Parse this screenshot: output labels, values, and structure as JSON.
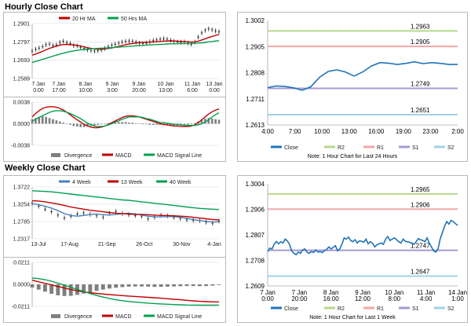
{
  "hourly": {
    "title": "Hourly Close Chart",
    "price_chart": {
      "type": "line",
      "legend": [
        "20 Hr MA",
        "50 Hrs MA"
      ],
      "yticks": [
        "1.2901",
        "1.2797",
        "1.2693",
        "1.2589"
      ],
      "ylim": [
        1.2589,
        1.2901
      ],
      "xticks": [
        "7 Jan\n0:00",
        "7 Jan\n17:00",
        "8 Jan\n10:00",
        "9 Jan\n3:00",
        "9 Jan\n20:00",
        "10 Jan\n13:00",
        "11 Jan\n6:00",
        "13 Jan\n0:00"
      ],
      "series": [
        {
          "name": "Price",
          "values": [
            1.2745,
            1.2755,
            1.2762,
            1.277,
            1.2781,
            1.2785,
            1.2776,
            1.278,
            1.2794,
            1.2801,
            1.2793,
            1.2788,
            1.2776,
            1.2774,
            1.2766,
            1.276,
            1.2752,
            1.2748,
            1.2745,
            1.2747,
            1.2752,
            1.276,
            1.277,
            1.2778,
            1.2784,
            1.279,
            1.2796,
            1.28,
            1.2802,
            1.28,
            1.2796,
            1.279,
            1.2787,
            1.279,
            1.2798,
            1.2804,
            1.2808,
            1.2812,
            1.2815,
            1.2812,
            1.2806,
            1.28,
            1.2796,
            1.2795,
            1.2797,
            1.279,
            1.2784,
            1.2796,
            1.2824,
            1.2848,
            1.2862,
            1.2871,
            1.2866,
            1.2859,
            1.2855
          ]
        },
        {
          "name": "20 Hr MA",
          "values": [
            1.2722,
            1.2728,
            1.2735,
            1.2743,
            1.2752,
            1.276,
            1.2767,
            1.2773,
            1.2779,
            1.2782,
            1.2783,
            1.2782,
            1.278,
            1.2777,
            1.2773,
            1.2769,
            1.2764,
            1.276,
            1.2757,
            1.2756,
            1.2756,
            1.2757,
            1.276,
            1.2763,
            1.2767,
            1.2771,
            1.2776,
            1.2781,
            1.2785,
            1.2788,
            1.2791,
            1.2793,
            1.2794,
            1.2795,
            1.2796,
            1.2797,
            1.2798,
            1.28,
            1.2801,
            1.2802,
            1.2803,
            1.2802,
            1.2801,
            1.28,
            1.2799,
            1.2798,
            1.2796,
            1.2797,
            1.2801,
            1.2808,
            1.2815,
            1.2822,
            1.2828,
            1.2834,
            1.2838
          ]
        },
        {
          "name": "50 Hrs MA",
          "values": [
            1.268,
            1.2686,
            1.2692,
            1.2698,
            1.2704,
            1.271,
            1.2716,
            1.2722,
            1.2728,
            1.2733,
            1.2738,
            1.2742,
            1.2746,
            1.2749,
            1.2752,
            1.2754,
            1.2756,
            1.2758,
            1.2759,
            1.276,
            1.2761,
            1.2762,
            1.2763,
            1.2764,
            1.2766,
            1.2767,
            1.2769,
            1.277,
            1.2772,
            1.2773,
            1.2775,
            1.2776,
            1.2777,
            1.2779,
            1.278,
            1.2781,
            1.2782,
            1.2783,
            1.2784,
            1.2785,
            1.2786,
            1.2786,
            1.2787,
            1.2787,
            1.2788,
            1.2788,
            1.2788,
            1.2789,
            1.279,
            1.2792,
            1.2794,
            1.2797,
            1.2799,
            1.2802,
            1.2804
          ]
        }
      ]
    },
    "macd_chart": {
      "type": "line",
      "yticks": [
        "0.0038",
        "0.0000",
        "-0.0038"
      ],
      "ylim": [
        -0.0038,
        0.0038
      ],
      "legend": [
        "Divergence",
        "MACD",
        "MACD Signal Line"
      ],
      "series": [
        {
          "name": "Divergence",
          "values": [
            0.0008,
            0.001,
            0.0012,
            0.0013,
            0.0012,
            0.001,
            0.0008,
            0.0006,
            0.0004,
            0.0002,
            0.0,
            -0.0002,
            -0.0004,
            -0.0005,
            -0.0006,
            -0.0006,
            -0.0005,
            -0.0004,
            -0.0003,
            -0.0002,
            -0.0001,
            0.0,
            0.0001,
            0.0002,
            0.0002,
            0.0003,
            0.0003,
            0.0003,
            0.0002,
            0.0002,
            0.0001,
            0.0,
            -0.0001,
            -0.0001,
            -0.0002,
            -0.0002,
            -0.0002,
            -0.0002,
            -0.0003,
            -0.0003,
            -0.0003,
            -0.0003,
            -0.0003,
            -0.0003,
            -0.0002,
            -0.0002,
            -0.0001,
            0.0001,
            0.0004,
            0.0007,
            0.0009,
            0.001,
            0.0009,
            0.0008,
            0.0007
          ]
        },
        {
          "name": "MACD",
          "values": [
            0.0012,
            0.0018,
            0.0023,
            0.0027,
            0.0029,
            0.003,
            0.003,
            0.0029,
            0.0027,
            0.0024,
            0.002,
            0.0016,
            0.0011,
            0.0007,
            0.0003,
            -0.0001,
            -0.0004,
            -0.0006,
            -0.0007,
            -0.0007,
            -0.0006,
            -0.0004,
            -0.0001,
            0.0002,
            0.0005,
            0.0008,
            0.0011,
            0.0013,
            0.0014,
            0.0014,
            0.0013,
            0.0012,
            0.001,
            0.0008,
            0.0006,
            0.0004,
            0.0002,
            0.0,
            -0.0001,
            -0.0002,
            -0.0003,
            -0.0004,
            -0.0004,
            -0.0005,
            -0.0005,
            -0.0005,
            -0.0004,
            -0.0002,
            0.0002,
            0.0007,
            0.0012,
            0.0017,
            0.0021,
            0.0024,
            0.0026
          ]
        },
        {
          "name": "MACD Signal Line",
          "values": [
            0.0004,
            0.0008,
            0.0011,
            0.0014,
            0.0017,
            0.002,
            0.0022,
            0.0023,
            0.0023,
            0.0022,
            0.002,
            0.0018,
            0.0015,
            0.0012,
            0.0009,
            0.0005,
            0.0001,
            -0.0002,
            -0.0004,
            -0.0005,
            -0.0005,
            -0.0004,
            -0.0002,
            0.0,
            0.0003,
            0.0005,
            0.0008,
            0.001,
            0.0012,
            0.0012,
            0.0012,
            0.0012,
            0.0011,
            0.0009,
            0.0008,
            0.0006,
            0.0004,
            0.0002,
            0.0002,
            0.0001,
            0.0,
            -0.0001,
            -0.0001,
            -0.0002,
            -0.0003,
            -0.0003,
            -0.0003,
            -0.0003,
            -0.0002,
            0.0,
            0.0003,
            0.0007,
            0.0012,
            0.0016,
            0.0019
          ]
        }
      ]
    },
    "levels_chart": {
      "type": "line",
      "yticks": [
        "1.3002",
        "1.2905",
        "1.2808",
        "1.2711",
        "1.2613"
      ],
      "ylim": [
        1.2613,
        1.3002
      ],
      "xticks": [
        "4:00",
        "7:00",
        "10:00",
        "13:00",
        "16:00",
        "19:00",
        "23:00",
        "2:00"
      ],
      "levels": [
        {
          "name": "R2",
          "value": 1.2963,
          "label": "1.2963"
        },
        {
          "name": "R1",
          "value": 1.2905,
          "label": "1.2905"
        },
        {
          "name": "S1",
          "value": 1.2749,
          "label": "1.2749"
        },
        {
          "name": "S2",
          "value": 1.2651,
          "label": "1.2651"
        }
      ],
      "series": [
        {
          "name": "Close",
          "values": [
            1.2752,
            1.2758,
            1.2756,
            1.2751,
            1.2742,
            1.2755,
            1.279,
            1.2812,
            1.2818,
            1.281,
            1.2795,
            1.281,
            1.2832,
            1.2845,
            1.2843,
            1.2838,
            1.2842,
            1.2848,
            1.2841,
            1.2845,
            1.2842,
            1.2838,
            1.2838
          ]
        }
      ],
      "legend": [
        "Close",
        "R2",
        "R1",
        "S1",
        "S2"
      ],
      "note": "Note: 1 Hour Chart for Last 24 Hours"
    }
  },
  "weekly": {
    "title": "Weekly Close Chart",
    "price_chart": {
      "type": "line",
      "legend": [
        "4 Week",
        "13 Week",
        "40 Week"
      ],
      "yticks": [
        "1.3722",
        "1.3254",
        "1.2785",
        "1.2317"
      ],
      "ylim": [
        1.2317,
        1.3722
      ],
      "xticks": [
        "13-Jul",
        "17-Aug",
        "21-Sep",
        "26-Oct",
        "30-Nov",
        "4-Jan"
      ],
      "series": [
        {
          "name": "Price",
          "values": [
            1.328,
            1.32,
            1.312,
            1.305,
            1.296,
            1.288,
            1.293,
            1.299,
            1.302,
            1.298,
            1.294,
            1.29,
            1.301,
            1.306,
            1.3,
            1.297,
            1.295,
            1.293,
            1.286,
            1.29,
            1.296,
            1.294,
            1.29,
            1.287,
            1.283,
            1.282,
            1.281,
            1.277,
            1.274,
            1.28
          ]
        },
        {
          "name": "4 Week",
          "values": [
            1.327,
            1.324,
            1.32,
            1.315,
            1.308,
            1.3,
            1.295,
            1.293,
            1.295,
            1.298,
            1.299,
            1.297,
            1.296,
            1.298,
            1.3,
            1.301,
            1.299,
            1.296,
            1.293,
            1.291,
            1.291,
            1.292,
            1.292,
            1.29,
            1.287,
            1.284,
            1.281,
            1.279,
            1.277,
            1.278
          ]
        },
        {
          "name": "13 Week",
          "values": [
            1.335,
            1.334,
            1.332,
            1.329,
            1.326,
            1.322,
            1.318,
            1.315,
            1.312,
            1.309,
            1.307,
            1.305,
            1.303,
            1.301,
            1.3,
            1.299,
            1.298,
            1.298,
            1.297,
            1.296,
            1.295,
            1.295,
            1.294,
            1.293,
            1.292,
            1.29,
            1.288,
            1.286,
            1.284,
            1.283
          ]
        },
        {
          "name": "40 Week",
          "values": [
            1.362,
            1.361,
            1.36,
            1.359,
            1.357,
            1.355,
            1.353,
            1.351,
            1.349,
            1.347,
            1.345,
            1.343,
            1.341,
            1.339,
            1.337,
            1.336,
            1.334,
            1.332,
            1.33,
            1.328,
            1.326,
            1.324,
            1.322,
            1.32,
            1.318,
            1.316,
            1.314,
            1.313,
            1.312,
            1.311
          ]
        }
      ]
    },
    "macd_chart": {
      "type": "line",
      "yticks": [
        "0.0211",
        "0.0000",
        "-0.0211"
      ],
      "ylim": [
        -0.0211,
        0.0211
      ],
      "legend": [
        "Divergence",
        "MACD",
        "MACD Signal Line"
      ],
      "series": [
        {
          "name": "Divergence",
          "values": [
            -0.003,
            -0.005,
            -0.007,
            -0.009,
            -0.0105,
            -0.0112,
            -0.011,
            -0.01,
            -0.0088,
            -0.0075,
            -0.0062,
            -0.005,
            -0.004,
            -0.0032,
            -0.0026,
            -0.0022,
            -0.002,
            -0.002,
            -0.0022,
            -0.0024,
            -0.0024,
            -0.0022,
            -0.002,
            -0.0018,
            -0.0016,
            -0.0016,
            -0.0017,
            -0.0016,
            -0.0012,
            -0.0006
          ]
        },
        {
          "name": "MACD",
          "values": [
            0.004,
            0.0025,
            0.001,
            -0.0005,
            -0.002,
            -0.0035,
            -0.005,
            -0.0062,
            -0.0072,
            -0.008,
            -0.0087,
            -0.0093,
            -0.0098,
            -0.0103,
            -0.0108,
            -0.0112,
            -0.0116,
            -0.012,
            -0.0124,
            -0.0128,
            -0.0133,
            -0.0138,
            -0.0143,
            -0.0148,
            -0.0153,
            -0.0158,
            -0.0163,
            -0.0166,
            -0.0168,
            -0.0168
          ]
        },
        {
          "name": "MACD Signal Line",
          "values": [
            0.006,
            0.0055,
            0.0045,
            0.003,
            0.0012,
            -0.0008,
            -0.0028,
            -0.0048,
            -0.0068,
            -0.0088,
            -0.0106,
            -0.0122,
            -0.0136,
            -0.0148,
            -0.0157,
            -0.0164,
            -0.017,
            -0.0175,
            -0.018,
            -0.0184,
            -0.0188,
            -0.0191,
            -0.0194,
            -0.0196,
            -0.0198,
            -0.0199,
            -0.02,
            -0.02,
            -0.02,
            -0.0199
          ]
        }
      ]
    },
    "levels_chart": {
      "type": "line",
      "yticks": [
        "1.3004",
        "1.2906",
        "1.2807",
        "1.2708",
        "1.2609"
      ],
      "ylim": [
        1.2609,
        1.3004
      ],
      "xticks": [
        "7 Jan\n0:00",
        "7 Jan\n20:00",
        "8 Jan\n16:00",
        "9 Jan\n12:00",
        "10 Jan\n8:00",
        "11 Jan\n4:00",
        "14 Jan\n1:00"
      ],
      "levels": [
        {
          "name": "R2",
          "value": 1.2965,
          "label": "1.2965"
        },
        {
          "name": "R1",
          "value": 1.2906,
          "label": "1.2906"
        },
        {
          "name": "S1",
          "value": 1.2747,
          "label": "1.2747"
        },
        {
          "name": "S2",
          "value": 1.2647,
          "label": "1.2647"
        }
      ],
      "series": [
        {
          "name": "Close",
          "values": [
            1.2742,
            1.2755,
            1.2752,
            1.2771,
            1.2781,
            1.2772,
            1.278,
            1.2775,
            1.279,
            1.2783,
            1.277,
            1.2745,
            1.2735,
            1.273,
            1.274,
            1.2735,
            1.2748,
            1.2752,
            1.274,
            1.2735,
            1.2742,
            1.2738,
            1.2748,
            1.274,
            1.2742,
            1.2738,
            1.2745,
            1.275,
            1.276,
            1.2752,
            1.2758,
            1.2765,
            1.2745,
            1.2752,
            1.277,
            1.2795,
            1.279,
            1.2798,
            1.2785,
            1.278,
            1.2788,
            1.2775,
            1.2783,
            1.2782,
            1.2778,
            1.279,
            1.2772,
            1.278,
            1.2775,
            1.276,
            1.2768,
            1.2772,
            1.2775,
            1.277,
            1.279,
            1.28,
            1.2785,
            1.279,
            1.2795,
            1.2788,
            1.278,
            1.2775,
            1.279,
            1.2782,
            1.278,
            1.2778,
            1.2775,
            1.277,
            1.278,
            1.2792,
            1.2788,
            1.2785,
            1.278,
            1.2795,
            1.2775,
            1.276,
            1.2745,
            1.274,
            1.2752,
            1.279,
            1.2815,
            1.284,
            1.2858,
            1.2848,
            1.2862,
            1.2858,
            1.285,
            1.2843
          ]
        }
      ],
      "legend": [
        "Close",
        "R2",
        "R1",
        "S1",
        "S2"
      ],
      "note": "Note: 1 Hour Chart for Last 1 Week"
    }
  },
  "colors": {
    "price": "#222222",
    "ma_short": "#c00000",
    "ma_long": "#00a050",
    "ma_4": "#4a7ebb",
    "ma_13": "#c00000",
    "ma_40": "#00a050",
    "divergence": "#7f7f7f",
    "macd": "#c00000",
    "signal": "#00a050",
    "close": "#1f73b7",
    "r2": "#b5d88a",
    "r1": "#f2a7a7",
    "s1": "#a99ad1",
    "s2": "#9dd4ea",
    "grid": "#d9d9d9"
  }
}
